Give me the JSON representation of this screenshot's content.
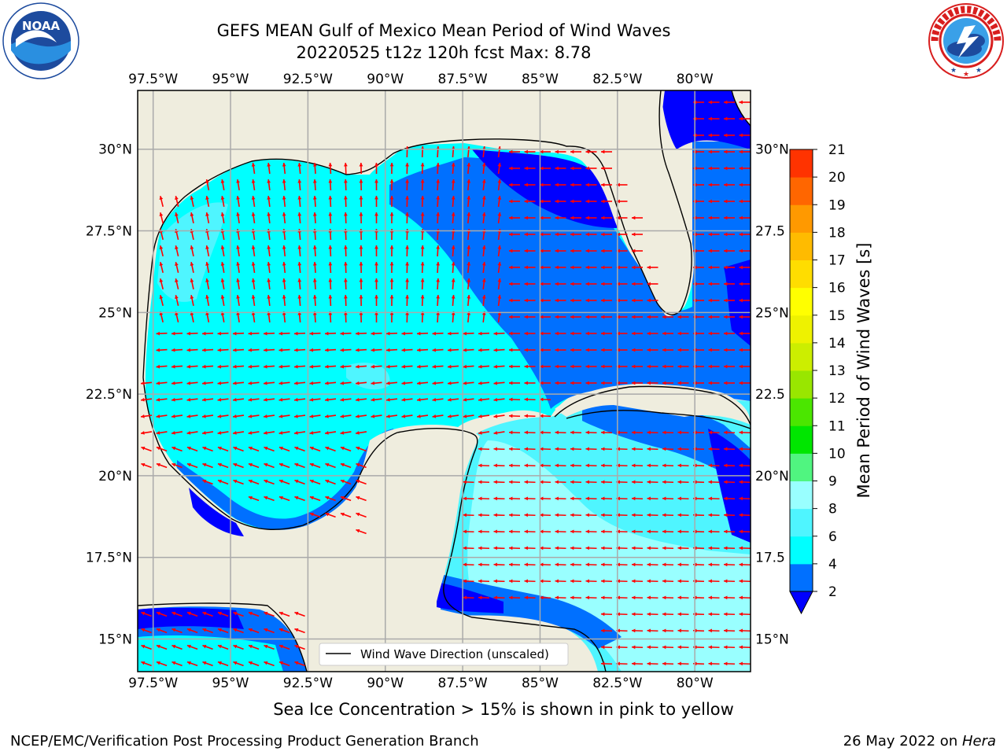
{
  "title": {
    "line1": "GEFS MEAN Gulf of Mexico Mean Period of Wind Waves",
    "line2": "20220525 t12z 120h fcst   Max: 8.78"
  },
  "logos": {
    "left": {
      "name": "noaa-logo",
      "text": "NOAA",
      "ring_text": "NATIONAL OCEANIC AND ATMOSPHERIC ADMINISTRATION · U.S. DEPARTMENT OF COMMERCE"
    },
    "right": {
      "name": "nws-logo",
      "ring_text": "NATIONAL WEATHER SERVICE"
    }
  },
  "map": {
    "lon_labels": [
      "97.5°W",
      "95°W",
      "92.5°W",
      "90°W",
      "87.5°W",
      "85°W",
      "82.5°W",
      "80°W"
    ],
    "lon_values": [
      -97.5,
      -95,
      -92.5,
      -90,
      -87.5,
      -85,
      -82.5,
      -80
    ],
    "lat_labels": [
      "30°N",
      "27.5°N",
      "25°N",
      "22.5°N",
      "20°N",
      "17.5°N",
      "15°N"
    ],
    "lat_values": [
      30,
      27.5,
      25,
      22.5,
      20,
      17.5,
      15
    ],
    "right_lat_labels": [
      "30°N",
      "27.5",
      "25°N",
      "22.5",
      "20°N",
      "17.5",
      "15°N"
    ],
    "extent": {
      "lon_min": -98,
      "lon_max": -78.2,
      "lat_min": 14.0,
      "lat_max": 31.8
    },
    "legend_label": "Wind Wave Direction (unscaled)",
    "land_color": "#efedde",
    "arrow_color": "#ff0000"
  },
  "colorbar": {
    "label": "Mean Period of Wind Waves [s]",
    "levels": [
      2,
      4,
      6,
      8,
      9,
      10,
      11,
      12,
      13,
      14,
      15,
      16,
      17,
      18,
      19,
      20,
      21
    ],
    "colors": [
      "#0070ff",
      "#00ffff",
      "#4ff5ff",
      "#99ffff",
      "#50f580",
      "#00e600",
      "#4be600",
      "#99e600",
      "#ccee00",
      "#eef200",
      "#ffff00",
      "#ffdd00",
      "#ffbb00",
      "#ff9900",
      "#ff6600",
      "#ff3300"
    ],
    "under_color": "#0000ff"
  },
  "footer": {
    "note": "Sea Ice Concentration > 15% is shown in pink to yellow",
    "credit_left": "NCEP/EMC/Verification Post Processing Product Generation Branch",
    "credit_right_date": "26 May 2022 on ",
    "credit_right_host": "Hera"
  }
}
